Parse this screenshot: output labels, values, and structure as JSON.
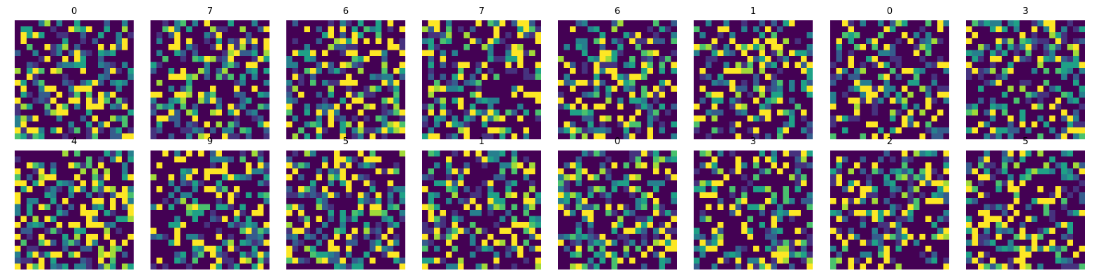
{
  "chart_data": {
    "type": "heatmap",
    "description_layout": "image grid",
    "rows": 2,
    "columns": 8,
    "cell_grid": [
      20,
      20
    ],
    "colormap": "viridis",
    "axes_visible": false,
    "palette": [
      "#440154",
      "#46327e",
      "#365c8d",
      "#277f8e",
      "#1fa187",
      "#4ac16d",
      "#a0da39",
      "#fde725"
    ],
    "panels": [
      {
        "title": "0",
        "seed": 11
      },
      {
        "title": "7",
        "seed": 23
      },
      {
        "title": "6",
        "seed": 37
      },
      {
        "title": "7",
        "seed": 41
      },
      {
        "title": "6",
        "seed": 53
      },
      {
        "title": "1",
        "seed": 67
      },
      {
        "title": "0",
        "seed": 79
      },
      {
        "title": "3",
        "seed": 83
      },
      {
        "title": "4",
        "seed": 97
      },
      {
        "title": "9",
        "seed": 101
      },
      {
        "title": "5",
        "seed": 113
      },
      {
        "title": "1",
        "seed": 127
      },
      {
        "title": "0",
        "seed": 131
      },
      {
        "title": "3",
        "seed": 149
      },
      {
        "title": "2",
        "seed": 157
      },
      {
        "title": "5",
        "seed": 163
      }
    ]
  }
}
